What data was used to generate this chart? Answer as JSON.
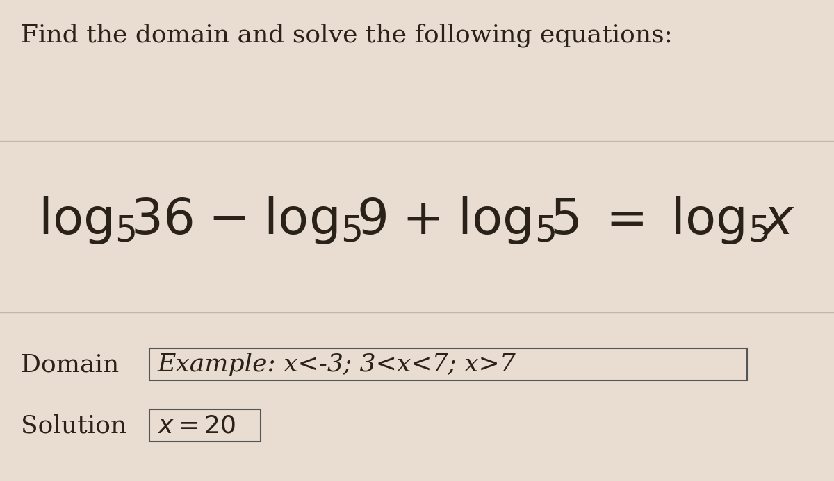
{
  "background_color": "#e8ddd0",
  "title": "Find the domain and solve the following equations:",
  "title_fontsize": 26,
  "title_color": "#2a2218",
  "equation_fontsize": 52,
  "domain_label": "Domain",
  "domain_value": "Example: x<-3; 3<x<7; x>7",
  "domain_fontsize": 26,
  "solution_label": "Solution",
  "solution_value": "x = 20",
  "solution_fontsize": 26,
  "label_color": "#2a2218",
  "box_color": "#555555",
  "line_color": "#c0b8ac"
}
